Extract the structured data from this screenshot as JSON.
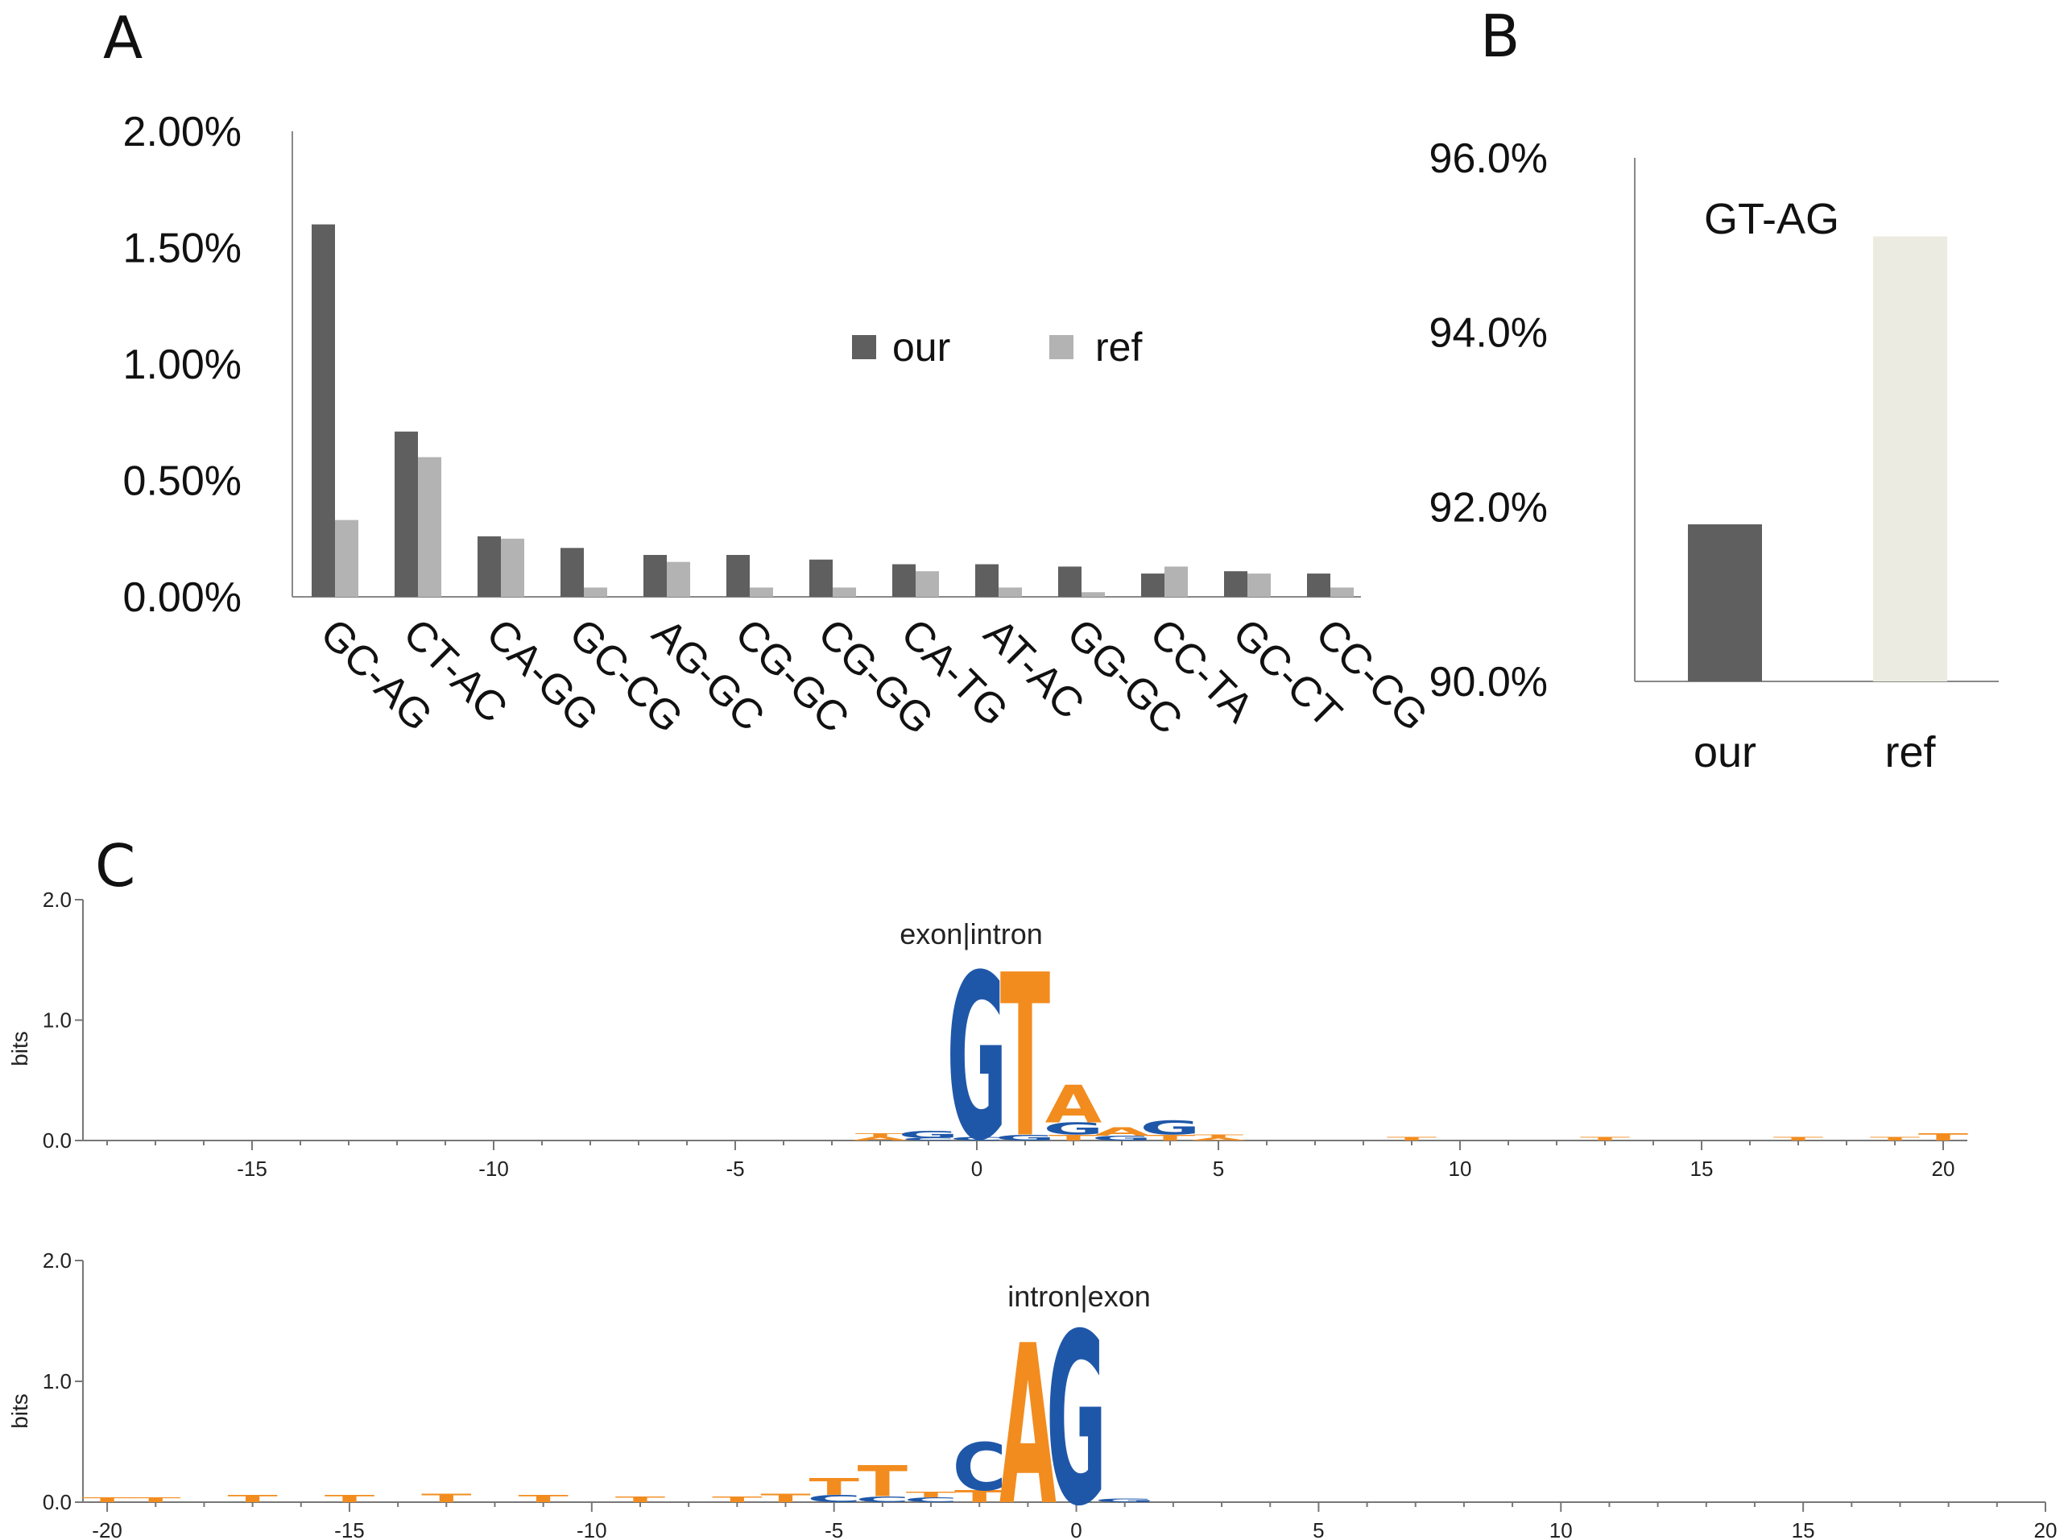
{
  "panels": {
    "a": "A",
    "b": "B",
    "c": "C"
  },
  "colors": {
    "our": "#5f5f5f",
    "ref_a": "#b3b3b3",
    "ref_b": "#ecebe1",
    "axis": "#888888",
    "logo_orange": "#f28c1f",
    "logo_blue": "#1f57a8",
    "text": "#111111"
  },
  "chart_data": [
    {
      "id": "A",
      "type": "bar",
      "title": "",
      "categories": [
        "GC-AG",
        "CT-AC",
        "CA-GG",
        "GC-CG",
        "AG-GC",
        "CG-GC",
        "CG-GG",
        "CA-TG",
        "AT-AC",
        "GG-GC",
        "CC-TA",
        "GC-CT",
        "CC-CG"
      ],
      "series": [
        {
          "name": "our",
          "values": [
            1.6,
            0.71,
            0.26,
            0.21,
            0.18,
            0.18,
            0.16,
            0.14,
            0.14,
            0.13,
            0.1,
            0.11,
            0.1
          ]
        },
        {
          "name": "ref",
          "values": [
            0.33,
            0.6,
            0.25,
            0.04,
            0.15,
            0.04,
            0.04,
            0.11,
            0.04,
            0.02,
            0.13,
            0.1,
            0.04
          ]
        }
      ],
      "yticks": [
        "0.00%",
        "0.50%",
        "1.00%",
        "1.50%",
        "2.00%"
      ],
      "ytick_values": [
        0,
        0.5,
        1.0,
        1.5,
        2.0
      ],
      "ylim": [
        0,
        2.0
      ],
      "legend": [
        "our",
        "ref"
      ],
      "legend_position": "center-right"
    },
    {
      "id": "B",
      "type": "bar",
      "title": "GT-AG",
      "categories": [
        "our",
        "ref"
      ],
      "values": [
        91.8,
        95.1
      ],
      "yticks": [
        "90.0%",
        "92.0%",
        "94.0%",
        "96.0%"
      ],
      "ytick_values": [
        90,
        92,
        94,
        96
      ],
      "ylim": [
        90,
        96
      ]
    },
    {
      "id": "C1",
      "type": "sequence-logo",
      "annotation": "exon|intron",
      "ylabel": "bits",
      "yticks": [
        "0.0",
        "1.0",
        "2.0"
      ],
      "ytick_values": [
        0,
        1,
        2
      ],
      "ylim": [
        0,
        2
      ],
      "xticks": [
        "-15",
        "-10",
        "-5",
        "0",
        "5",
        "10",
        "15",
        "20"
      ],
      "xtick_values": [
        -15,
        -10,
        -5,
        0,
        5,
        10,
        15,
        20
      ],
      "xlim": [
        -18.5,
        20.5
      ],
      "columns": [
        {
          "pos": -2,
          "stack": [
            {
              "l": "A",
              "h": 0.03
            },
            {
              "l": "T",
              "h": 0.03
            }
          ]
        },
        {
          "pos": -1,
          "stack": [
            {
              "l": "C",
              "h": 0.02
            },
            {
              "l": "G",
              "h": 0.06
            }
          ]
        },
        {
          "pos": 0,
          "stack": [
            {
              "l": "C",
              "h": 0.03
            },
            {
              "l": "G",
              "h": 1.4
            }
          ]
        },
        {
          "pos": 1,
          "stack": [
            {
              "l": "G",
              "h": 0.05
            },
            {
              "l": "T",
              "h": 1.38
            }
          ]
        },
        {
          "pos": 2,
          "stack": [
            {
              "l": "T",
              "h": 0.05
            },
            {
              "l": "G",
              "h": 0.1
            },
            {
              "l": "A",
              "h": 0.32
            }
          ]
        },
        {
          "pos": 3,
          "stack": [
            {
              "l": "G",
              "h": 0.04
            },
            {
              "l": "A",
              "h": 0.07
            }
          ]
        },
        {
          "pos": 4,
          "stack": [
            {
              "l": "T",
              "h": 0.05
            },
            {
              "l": "G",
              "h": 0.12
            }
          ]
        },
        {
          "pos": 5,
          "stack": [
            {
              "l": "A",
              "h": 0.02
            },
            {
              "l": "T",
              "h": 0.03
            }
          ]
        },
        {
          "pos": 9,
          "stack": [
            {
              "l": "T",
              "h": 0.03
            }
          ]
        },
        {
          "pos": 13,
          "stack": [
            {
              "l": "T",
              "h": 0.03
            }
          ]
        },
        {
          "pos": 17,
          "stack": [
            {
              "l": "T",
              "h": 0.03
            }
          ]
        },
        {
          "pos": 19,
          "stack": [
            {
              "l": "T",
              "h": 0.03
            }
          ]
        },
        {
          "pos": 20,
          "stack": [
            {
              "l": "T",
              "h": 0.06
            }
          ]
        }
      ]
    },
    {
      "id": "C2",
      "type": "sequence-logo",
      "annotation": "intron|exon",
      "ylabel": "bits",
      "yticks": [
        "0.0",
        "1.0",
        "2.0"
      ],
      "ytick_values": [
        0,
        1,
        2
      ],
      "ylim": [
        0,
        2
      ],
      "xticks": [
        "-20",
        "-15",
        "-10",
        "-5",
        "0",
        "5",
        "10",
        "15",
        "20"
      ],
      "xtick_values": [
        -20,
        -15,
        -10,
        -5,
        0,
        5,
        10,
        15,
        20
      ],
      "xlim": [
        -20.5,
        20
      ],
      "columns": [
        {
          "pos": -20,
          "stack": [
            {
              "l": "T",
              "h": 0.04
            }
          ]
        },
        {
          "pos": -19,
          "stack": [
            {
              "l": "T",
              "h": 0.04
            }
          ]
        },
        {
          "pos": -17,
          "stack": [
            {
              "l": "T",
              "h": 0.06
            }
          ]
        },
        {
          "pos": -15,
          "stack": [
            {
              "l": "T",
              "h": 0.06
            }
          ]
        },
        {
          "pos": -13,
          "stack": [
            {
              "l": "T",
              "h": 0.07
            }
          ]
        },
        {
          "pos": -11,
          "stack": [
            {
              "l": "T",
              "h": 0.06
            }
          ]
        },
        {
          "pos": -9,
          "stack": [
            {
              "l": "T",
              "h": 0.05
            }
          ]
        },
        {
          "pos": -7,
          "stack": [
            {
              "l": "T",
              "h": 0.05
            }
          ]
        },
        {
          "pos": -6,
          "stack": [
            {
              "l": "T",
              "h": 0.07
            }
          ]
        },
        {
          "pos": -5,
          "stack": [
            {
              "l": "C",
              "h": 0.06
            },
            {
              "l": "T",
              "h": 0.14
            }
          ]
        },
        {
          "pos": -4,
          "stack": [
            {
              "l": "C",
              "h": 0.05
            },
            {
              "l": "T",
              "h": 0.26
            }
          ]
        },
        {
          "pos": -3,
          "stack": [
            {
              "l": "C",
              "h": 0.04
            },
            {
              "l": "T",
              "h": 0.05
            }
          ]
        },
        {
          "pos": -2,
          "stack": [
            {
              "l": "T",
              "h": 0.1
            },
            {
              "l": "C",
              "h": 0.4
            }
          ]
        },
        {
          "pos": -1,
          "stack": [
            {
              "l": "A",
              "h": 1.35
            }
          ]
        },
        {
          "pos": 0,
          "stack": [
            {
              "l": "G",
              "h": 1.45
            }
          ]
        },
        {
          "pos": 1,
          "stack": [
            {
              "l": "G",
              "h": 0.03
            }
          ]
        }
      ]
    }
  ]
}
